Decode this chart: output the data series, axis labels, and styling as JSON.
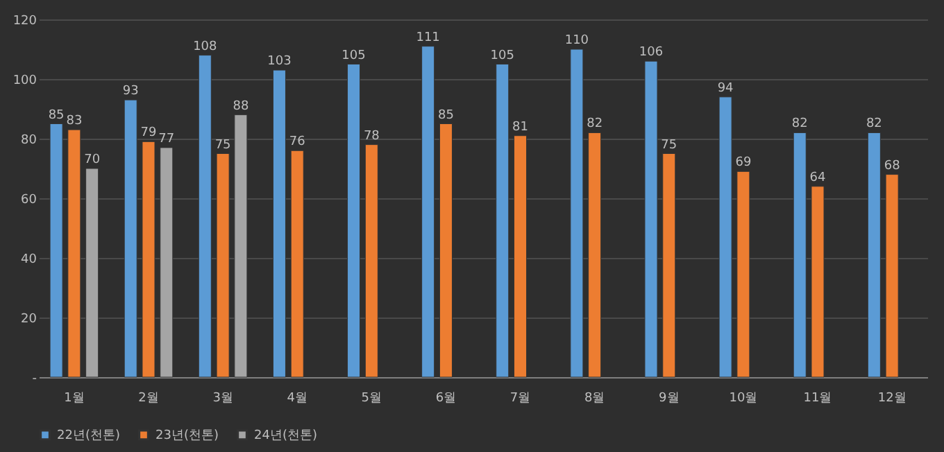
{
  "chart_data": {
    "type": "bar",
    "categories": [
      "1월",
      "2월",
      "3월",
      "4월",
      "5월",
      "6월",
      "7월",
      "8월",
      "9월",
      "10월",
      "11월",
      "12월"
    ],
    "series": [
      {
        "name": "22년(천톤)",
        "color": "#5b9bd5",
        "values": [
          85,
          93,
          108,
          103,
          105,
          111,
          105,
          110,
          106,
          94,
          82,
          82
        ]
      },
      {
        "name": "23년(천톤)",
        "color": "#ed7d31",
        "values": [
          83,
          79,
          75,
          76,
          78,
          85,
          81,
          82,
          75,
          69,
          64,
          68
        ]
      },
      {
        "name": "24년(천톤)",
        "color": "#a5a5a5",
        "values": [
          70,
          77,
          88,
          null,
          null,
          null,
          null,
          null,
          null,
          null,
          null,
          null
        ]
      }
    ],
    "ylim": [
      0,
      120
    ],
    "yticks": [
      {
        "value": 0,
        "label": "-"
      },
      20,
      40,
      60,
      80,
      100,
      120
    ],
    "grid": "y",
    "legend": "bottom",
    "data_labels": true
  }
}
